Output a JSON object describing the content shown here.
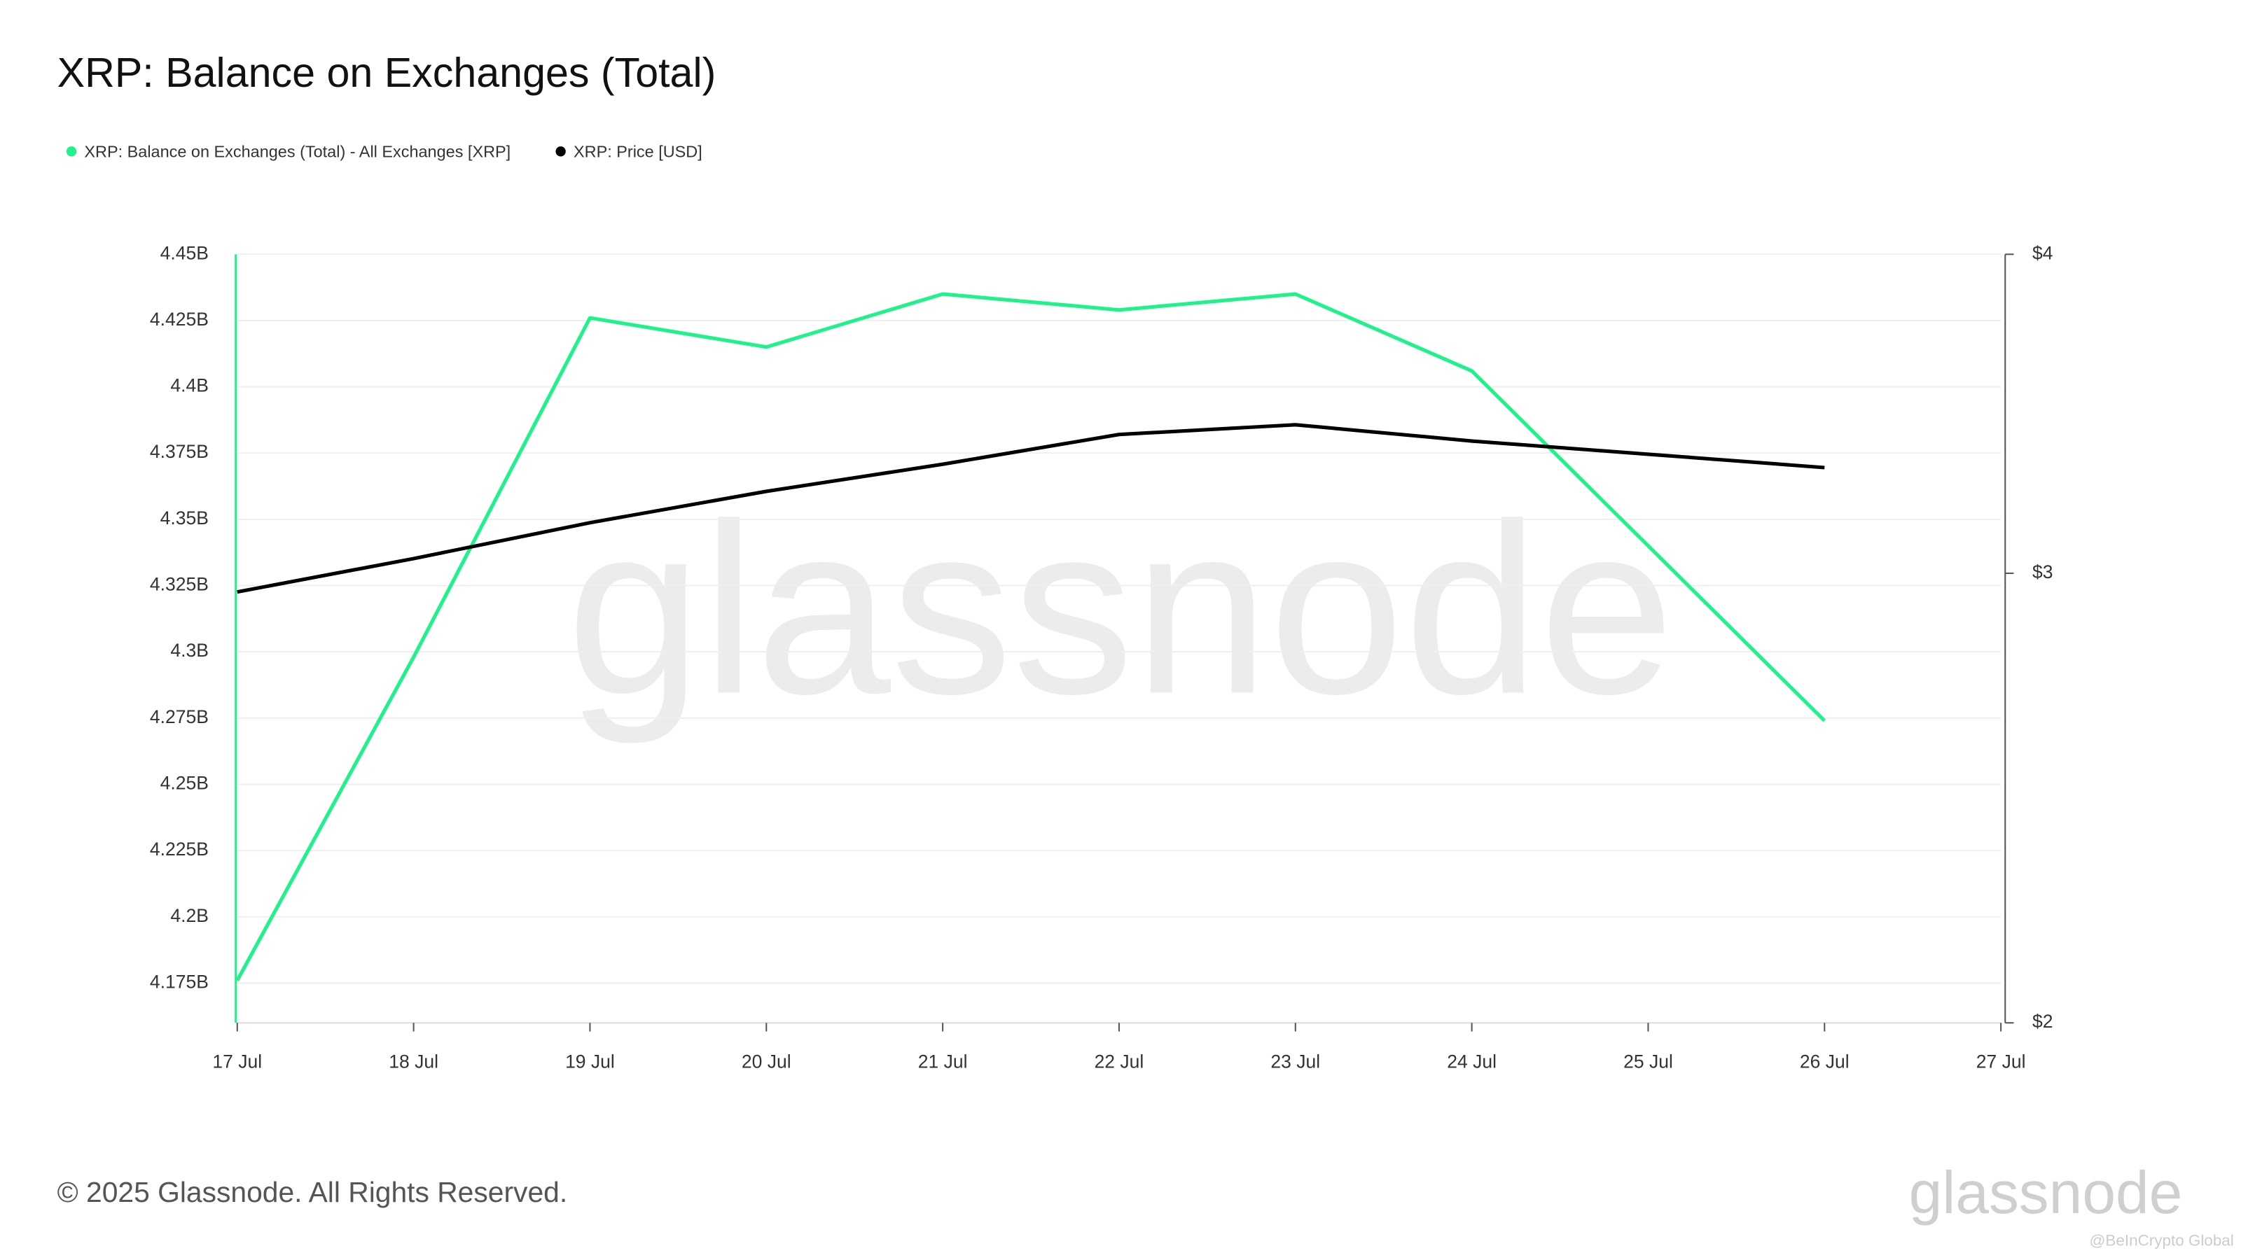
{
  "chart_data": {
    "type": "line",
    "title": "XRP: Balance on Exchanges (Total)",
    "categories": [
      "17 Jul",
      "18 Jul",
      "19 Jul",
      "20 Jul",
      "21 Jul",
      "22 Jul",
      "23 Jul",
      "24 Jul",
      "25 Jul",
      "26 Jul",
      "27 Jul"
    ],
    "series": [
      {
        "name": "XRP: Balance on Exchanges (Total) - All Exchanges [XRP]",
        "color": "#1ef28a",
        "values": [
          4.176,
          4.298,
          4.426,
          4.415,
          4.435,
          4.429,
          4.435,
          4.406,
          4.34,
          4.274,
          null
        ]
      },
      {
        "name": "XRP: Price [USD]",
        "color": "#000000",
        "axis": "y2",
        "values": [
          2.95,
          3.04,
          3.14,
          3.23,
          3.31,
          3.4,
          3.43,
          3.38,
          3.34,
          3.3,
          null
        ]
      }
    ],
    "ylim": [
      4.16,
      4.45
    ],
    "yticks": [
      {
        "value": 4.175,
        "label": "4.175B"
      },
      {
        "value": 4.2,
        "label": "4.2B"
      },
      {
        "value": 4.225,
        "label": "4.225B"
      },
      {
        "value": 4.25,
        "label": "4.25B"
      },
      {
        "value": 4.275,
        "label": "4.275B"
      },
      {
        "value": 4.3,
        "label": "4.3B"
      },
      {
        "value": 4.325,
        "label": "4.325B"
      },
      {
        "value": 4.35,
        "label": "4.35B"
      },
      {
        "value": 4.375,
        "label": "4.375B"
      },
      {
        "value": 4.4,
        "label": "4.4B"
      },
      {
        "value": 4.425,
        "label": "4.425B"
      },
      {
        "value": 4.45,
        "label": "4.45B"
      }
    ],
    "y2lim": [
      2,
      4
    ],
    "y2_log_scale": true,
    "y2ticks": [
      {
        "value": 2,
        "label": "$2"
      },
      {
        "value": 3,
        "label": "$3"
      },
      {
        "value": 4,
        "label": "$4"
      }
    ],
    "grid": true,
    "watermark": "glassnode",
    "footer": "© 2025 Glassnode. All Rights Reserved.",
    "logo": "glassnode",
    "credit": "@BeInCrypto Global"
  }
}
